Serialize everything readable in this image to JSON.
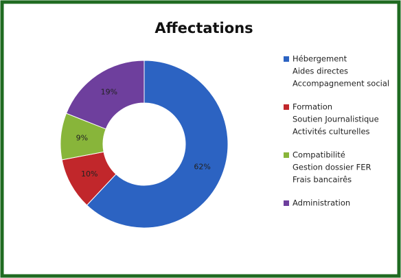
{
  "chart_data": {
    "type": "donut",
    "title": "Affectations",
    "categories": [
      "Hébergement",
      "Formation",
      "Compatibilité",
      "Administration"
    ],
    "category_details": [
      [
        "Aides directes",
        "Accompagnement social"
      ],
      [
        "Soutien Journalistique",
        "Activités culturelles"
      ],
      [
        "Gestion dossier FER",
        "Frais bancairês"
      ],
      []
    ],
    "values": [
      62,
      10,
      9,
      19
    ],
    "value_labels": [
      "62%",
      "10%",
      "9%",
      "19%"
    ],
    "colors": [
      "#2c63c2",
      "#c1272b",
      "#88b53a",
      "#6e3f9d"
    ],
    "legend": "right"
  }
}
